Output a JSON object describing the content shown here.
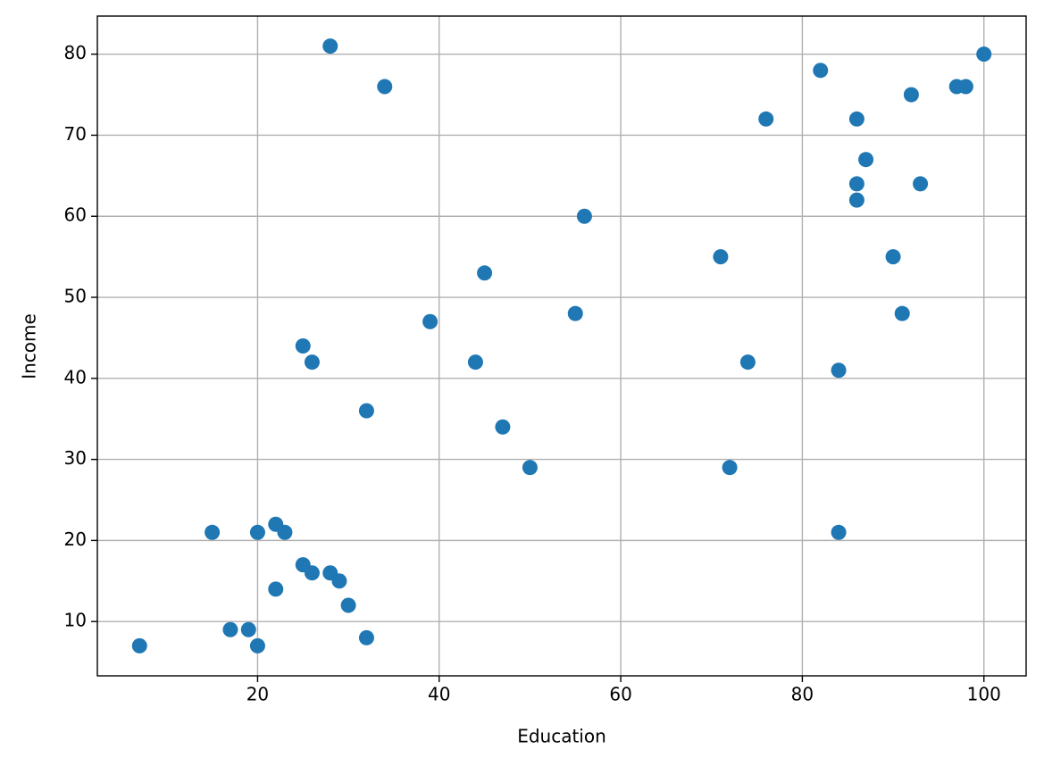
{
  "chart_data": {
    "type": "scatter",
    "xlabel": "Education",
    "ylabel": "Income",
    "x": [
      28,
      34,
      82,
      92,
      97,
      98,
      100,
      76,
      86,
      87,
      86,
      93,
      86,
      56,
      71,
      90,
      45,
      39,
      55,
      91,
      25,
      26,
      44,
      74,
      84,
      32,
      47,
      50,
      72,
      15,
      20,
      22,
      23,
      84,
      25,
      26,
      28,
      29,
      22,
      30,
      17,
      19,
      7,
      20,
      32
    ],
    "y": [
      81,
      76,
      78,
      75,
      76,
      76,
      80,
      72,
      72,
      67,
      64,
      64,
      62,
      60,
      55,
      55,
      53,
      47,
      48,
      48,
      44,
      42,
      42,
      42,
      41,
      36,
      34,
      29,
      29,
      21,
      21,
      22,
      21,
      21,
      17,
      16,
      16,
      15,
      14,
      12,
      9,
      9,
      7,
      7,
      8
    ],
    "color": "#1f77b4",
    "xlim": [
      2.35,
      104.65
    ],
    "ylim": [
      3.3,
      84.7
    ],
    "xticks": [
      20,
      40,
      60,
      80,
      100
    ],
    "yticks": [
      10,
      20,
      30,
      40,
      50,
      60,
      70,
      80
    ],
    "grid": true
  }
}
